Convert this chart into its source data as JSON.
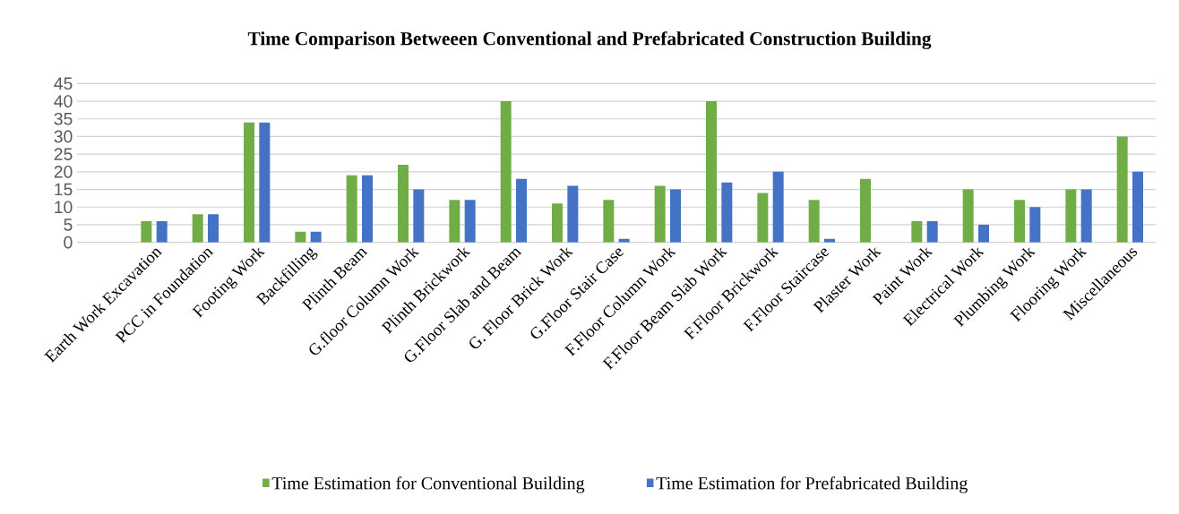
{
  "chart_data": {
    "type": "bar",
    "title": "Time Comparison Betweeen Conventional and Prefabricated Construction Building",
    "categories": [
      null,
      "Earth Work Excavation",
      "PCC in Foundation",
      "Footing Work",
      "Backfilling",
      "Plinth Beam",
      "G.floor Column Work",
      "Plinth Brickwork",
      "G.Floor Slab and Beam",
      "G. Floor Brick Work",
      "G.Floor Stair Case",
      "F.Floor Column Work",
      "F.Floor Beam Slab Work",
      "F.Floor Brickwork",
      "F.Floor Staircase",
      "Plaster Work",
      "Paint Work",
      "Electrical Work",
      "Plumbing Work",
      "Flooring Work",
      "Miscellaneous"
    ],
    "series": [
      {
        "name": "Time Estimation for Conventional Building",
        "color": "#70ad47",
        "values": [
          null,
          6,
          8,
          34,
          3,
          19,
          22,
          12,
          40,
          11,
          12,
          16,
          40,
          14,
          12,
          18,
          6,
          15,
          12,
          15,
          30
        ]
      },
      {
        "name": "Time Estimation for Prefabricated Building",
        "color": "#4472c4",
        "values": [
          null,
          6,
          8,
          34,
          3,
          19,
          15,
          12,
          18,
          16,
          1,
          15,
          17,
          20,
          1,
          null,
          6,
          5,
          10,
          15,
          20
        ]
      }
    ],
    "ylim": [
      0,
      45
    ],
    "yticks": [
      0,
      5,
      10,
      15,
      20,
      25,
      30,
      35,
      40,
      45
    ],
    "grid": "y",
    "legend": "bottom"
  }
}
